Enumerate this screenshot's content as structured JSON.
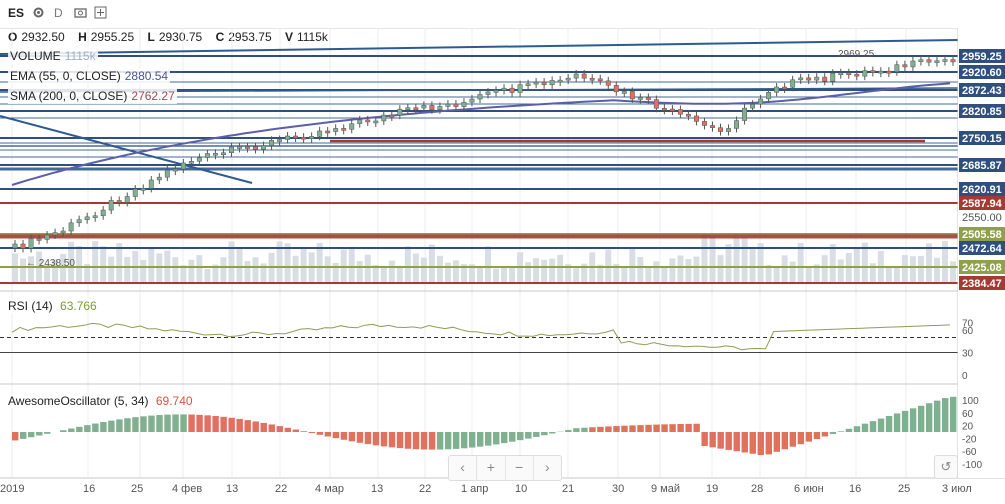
{
  "toolbar": {
    "symbol": "ES",
    "gear_icon": "gear-icon",
    "interval": "D",
    "snapshot_icon": "snapshot-icon",
    "compare_icon": "plus-icon"
  },
  "ohlc": {
    "o_label": "O",
    "o_value": "2932.50",
    "h_label": "H",
    "h_value": "2955.25",
    "l_label": "L",
    "l_value": "2930.75",
    "c_label": "C",
    "c_value": "2953.75",
    "v_label": "V",
    "v_value": "1115k"
  },
  "indicators": {
    "volume_label": "VOLUME",
    "volume_value": "1115k",
    "ema_label": "EMA (55, 0, CLOSE)",
    "ema_value": "2880.54",
    "sma_label": "SMA (200, 0, CLOSE)",
    "sma_value": "2762.27",
    "rsi_label": "RSI (14)",
    "rsi_value": "63.766",
    "ao_label": "AwesomeOscillator (5, 34)",
    "ao_value": "69.740"
  },
  "price_axis": [
    {
      "value": "2959.25",
      "bg": "#2f4f7f",
      "fg": "#ffffff"
    },
    {
      "value": "2920.60",
      "bg": "#2f4f7f",
      "fg": "#ffffff"
    },
    {
      "value": "2872.43",
      "bg": "#2f4f7f",
      "fg": "#ffffff"
    },
    {
      "value": "2820.85",
      "bg": "#2f4f7f",
      "fg": "#ffffff"
    },
    {
      "value": "2750.15",
      "bg": "#2f4f7f",
      "fg": "#ffffff"
    },
    {
      "value": "2685.87",
      "bg": "#2f4f7f",
      "fg": "#ffffff"
    },
    {
      "value": "2620.91",
      "bg": "#2f4f7f",
      "fg": "#ffffff"
    },
    {
      "value": "2587.94",
      "bg": "#a33a35",
      "fg": "#ffffff"
    },
    {
      "value": "2550.00",
      "bg": "transparent",
      "fg": "#555555"
    },
    {
      "value": "2505.58",
      "bg": "#8ea04a",
      "fg": "#ffffff"
    },
    {
      "value": "2472.64",
      "bg": "#2f4f7f",
      "fg": "#ffffff"
    },
    {
      "value": "2425.08",
      "bg": "#8ea04a",
      "fg": "#ffffff"
    },
    {
      "value": "2384.47",
      "bg": "#a33a35",
      "fg": "#ffffff"
    }
  ],
  "annotations": {
    "high": "2969.25",
    "low": "2438.50"
  },
  "rsi_axis": [
    "70",
    "60",
    "30",
    "0"
  ],
  "ao_axis": [
    "100",
    "60",
    "20",
    "-20",
    "-60",
    "-100"
  ],
  "time_axis": [
    "2019",
    "16",
    "25",
    "4 фев",
    "13",
    "22",
    "4 мар",
    "13",
    "22",
    "1 апр",
    "10",
    "21",
    "30",
    "9 май",
    "19",
    "28",
    "6 июн",
    "16",
    "25",
    "3 июл"
  ],
  "nav": {
    "back": "‹",
    "zoom_in": "+",
    "zoom_out": "−",
    "forward": "›",
    "reset": "↺"
  },
  "colors": {
    "up": "#7fb08f",
    "down": "#e0715e",
    "line": "#2f5a8f",
    "red_level": "#a33a35",
    "green_level": "#8ea04a",
    "ema": "#5b5fa8",
    "sma": "#a04a50"
  }
}
